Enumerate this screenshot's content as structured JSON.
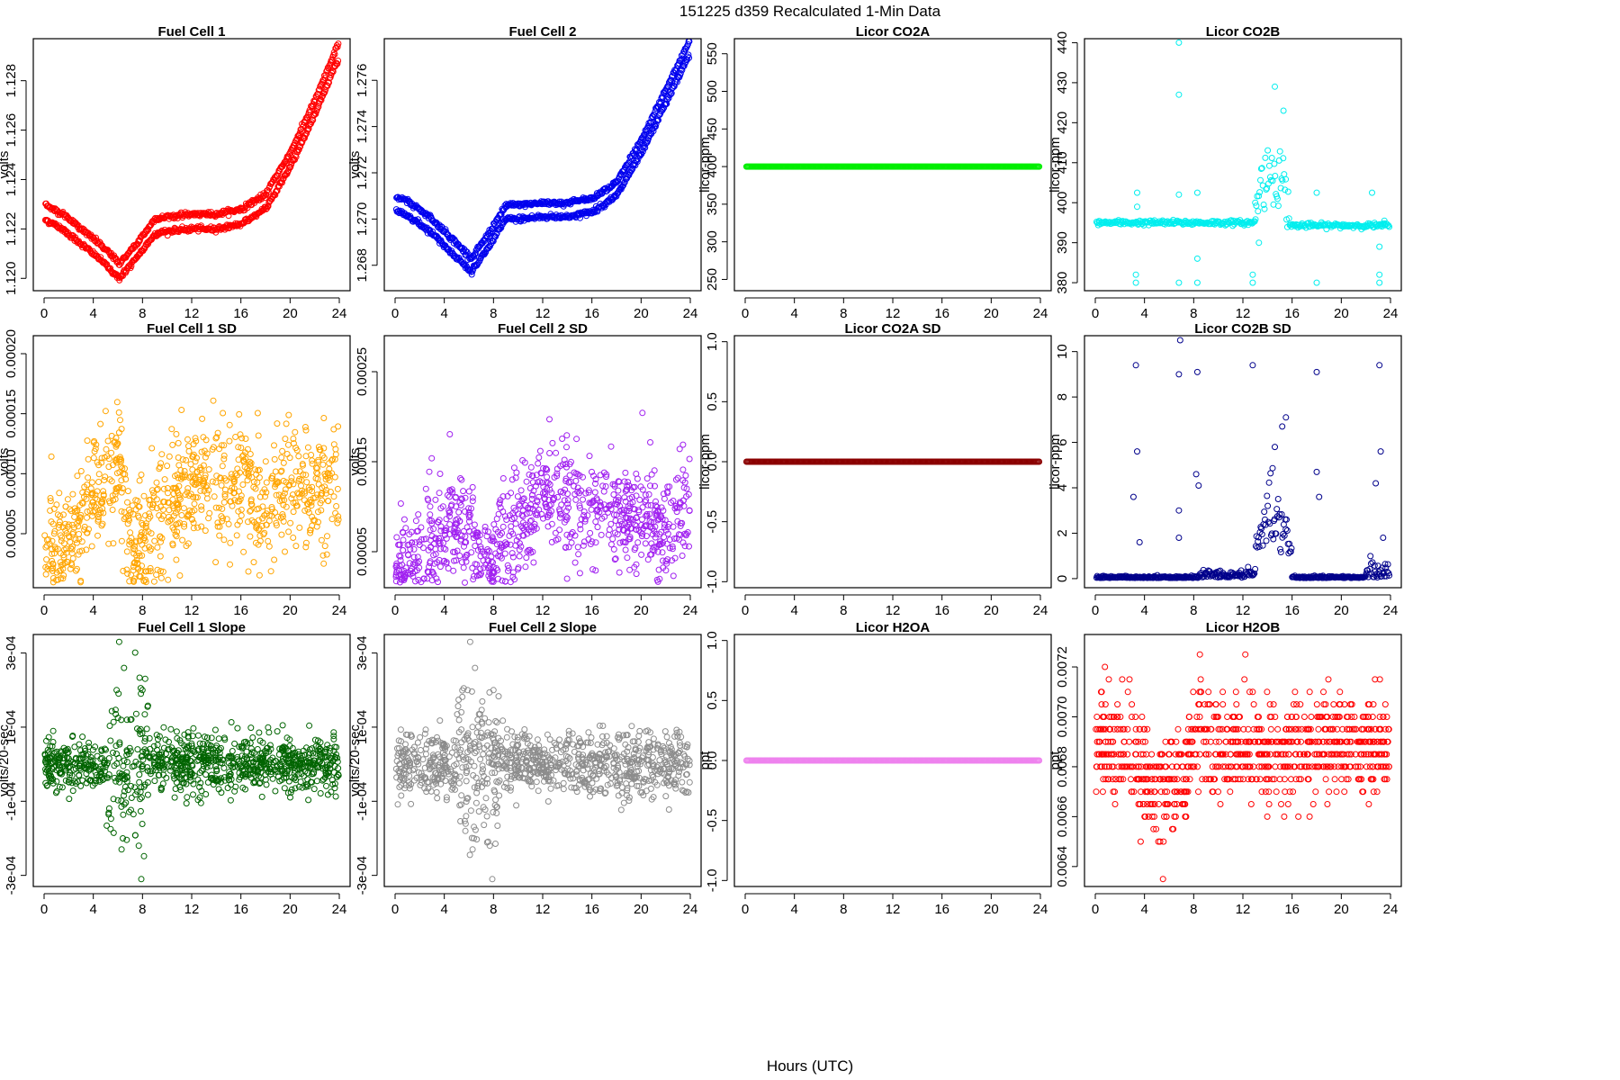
{
  "figure": {
    "title": "151225   d359   Recalculated 1-Min Data",
    "xlabel": "Hours (UTC)"
  },
  "chart_data": [
    {
      "id": "fc1",
      "type": "scatter",
      "title": "Fuel Cell 1",
      "ylabel": "volts",
      "color": "#ff0000",
      "xlim": [
        0,
        24
      ],
      "ylim": [
        1.1195,
        1.1297
      ],
      "xticks": [
        0,
        4,
        8,
        12,
        16,
        20,
        24
      ],
      "yticks": [
        1.12,
        1.122,
        1.124,
        1.126,
        1.128
      ],
      "ytick_labels": [
        "1.120",
        "1.122",
        "1.124",
        "1.126",
        "1.128"
      ],
      "kind": "trend2",
      "knots": [
        [
          0,
          1.1224
        ],
        [
          1.5,
          1.122
        ],
        [
          3,
          1.1214
        ],
        [
          4.5,
          1.1208
        ],
        [
          6.1,
          1.12
        ],
        [
          7.5,
          1.1208
        ],
        [
          9,
          1.1218
        ],
        [
          10,
          1.1219
        ],
        [
          12,
          1.122
        ],
        [
          14,
          1.122
        ],
        [
          16,
          1.1222
        ],
        [
          18,
          1.1228
        ],
        [
          20,
          1.1245
        ],
        [
          22,
          1.1266
        ],
        [
          24,
          1.129
        ]
      ],
      "offset": 0.0006,
      "noise": 8e-05,
      "n": 420
    },
    {
      "id": "fc2",
      "type": "scatter",
      "title": "Fuel Cell 2",
      "ylabel": "volts",
      "color": "#0000ee",
      "xlim": [
        0,
        24
      ],
      "ylim": [
        1.2669,
        1.2778
      ],
      "xticks": [
        0,
        4,
        8,
        12,
        16,
        20,
        24
      ],
      "yticks": [
        1.268,
        1.27,
        1.272,
        1.274,
        1.276
      ],
      "ytick_labels": [
        "1.268",
        "1.270",
        "1.272",
        "1.274",
        "1.276"
      ],
      "kind": "trend2",
      "knots": [
        [
          0,
          1.2704
        ],
        [
          1.5,
          1.27
        ],
        [
          3,
          1.2694
        ],
        [
          4.5,
          1.2686
        ],
        [
          6.2,
          1.2677
        ],
        [
          7.5,
          1.2687
        ],
        [
          9,
          1.27
        ],
        [
          10,
          1.27
        ],
        [
          12,
          1.2701
        ],
        [
          14,
          1.2701
        ],
        [
          16,
          1.2703
        ],
        [
          18,
          1.271
        ],
        [
          20,
          1.2728
        ],
        [
          22,
          1.275
        ],
        [
          24,
          1.2772
        ]
      ],
      "offset": 0.0006,
      "noise": 9e-05,
      "n": 420
    },
    {
      "id": "co2a",
      "type": "scatter",
      "title": "Licor CO2A",
      "ylabel": "licor-ppm",
      "color": "#00ee00",
      "xlim": [
        0,
        24
      ],
      "ylim": [
        235,
        570
      ],
      "xticks": [
        0,
        4,
        8,
        12,
        16,
        20,
        24
      ],
      "yticks": [
        250,
        300,
        350,
        400,
        450,
        500,
        550
      ],
      "ytick_labels": [
        "250",
        "300",
        "350",
        "400",
        "450",
        "500",
        "550"
      ],
      "kind": "flat",
      "value": 400,
      "n": 300
    },
    {
      "id": "co2b",
      "type": "scatter",
      "title": "Licor CO2B",
      "ylabel": "licor-ppm",
      "color": "#00eeee",
      "xlim": [
        0,
        24
      ],
      "ylim": [
        378,
        441
      ],
      "xticks": [
        0,
        4,
        8,
        12,
        16,
        20,
        24
      ],
      "yticks": [
        380,
        390,
        400,
        410,
        420,
        430,
        440
      ],
      "ytick_labels": [
        "380",
        "390",
        "400",
        "410",
        "420",
        "430",
        "440"
      ],
      "kind": "co2b",
      "n": 360
    },
    {
      "id": "fc1sd",
      "type": "scatter",
      "title": "Fuel Cell 1 SD",
      "ylabel": "volts",
      "color": "#ffa500",
      "xlim": [
        0,
        24
      ],
      "ylim": [
        5e-06,
        0.000215
      ],
      "xticks": [
        0,
        4,
        8,
        12,
        16,
        20,
        24
      ],
      "yticks": [
        5e-05,
        0.0001,
        0.00015,
        0.0002
      ],
      "ytick_labels": [
        "0.00005",
        "0.00010",
        "0.00015",
        "0.00020"
      ],
      "kind": "noisy",
      "knots": [
        [
          0,
          3e-05
        ],
        [
          2,
          4e-05
        ],
        [
          3.5,
          7e-05
        ],
        [
          5,
          0.0001
        ],
        [
          6,
          0.00011
        ],
        [
          7,
          3e-05
        ],
        [
          8,
          4e-05
        ],
        [
          10,
          7e-05
        ],
        [
          12,
          0.0001
        ],
        [
          14,
          8e-05
        ],
        [
          16,
          9e-05
        ],
        [
          18,
          7e-05
        ],
        [
          20,
          9e-05
        ],
        [
          22,
          8e-05
        ],
        [
          24,
          9e-05
        ]
      ],
      "spread": 2.5e-05,
      "n": 900
    },
    {
      "id": "fc2sd",
      "type": "scatter",
      "title": "Fuel Cell 2 SD",
      "ylabel": "volts",
      "color": "#a020f0",
      "xlim": [
        0,
        24
      ],
      "ylim": [
        1e-05,
        0.00029
      ],
      "xticks": [
        0,
        4,
        8,
        12,
        16,
        20,
        24
      ],
      "yticks": [
        5e-05,
        0.00015,
        0.00025
      ],
      "ytick_labels": [
        "0.00005",
        "0.00015",
        "0.00025"
      ],
      "kind": "noisy",
      "knots": [
        [
          0,
          3e-05
        ],
        [
          2,
          4e-05
        ],
        [
          4,
          7e-05
        ],
        [
          5.5,
          8e-05
        ],
        [
          7,
          4e-05
        ],
        [
          8,
          4e-05
        ],
        [
          10,
          8e-05
        ],
        [
          12,
          0.00012
        ],
        [
          14,
          0.0001
        ],
        [
          16,
          0.0001
        ],
        [
          18,
          9e-05
        ],
        [
          20,
          9e-05
        ],
        [
          22,
          8e-05
        ],
        [
          24,
          9e-05
        ]
      ],
      "spread": 3e-05,
      "n": 900
    },
    {
      "id": "co2asd",
      "type": "scatter",
      "title": "Licor CO2A SD",
      "ylabel": "licor-ppm",
      "color": "#8b0000",
      "xlim": [
        0,
        24
      ],
      "ylim": [
        -1.05,
        1.05
      ],
      "xticks": [
        0,
        4,
        8,
        12,
        16,
        20,
        24
      ],
      "yticks": [
        -1.0,
        -0.5,
        0.0,
        0.5,
        1.0
      ],
      "ytick_labels": [
        "-1.0",
        "-0.5",
        "0.0",
        "0.5",
        "1.0"
      ],
      "kind": "flat",
      "value": 0,
      "n": 300
    },
    {
      "id": "co2bsd",
      "type": "scatter",
      "title": "Licor CO2B SD",
      "ylabel": "licor-ppm",
      "color": "#00008b",
      "xlim": [
        0,
        24
      ],
      "ylim": [
        -0.4,
        10.7
      ],
      "xticks": [
        0,
        4,
        8,
        12,
        16,
        20,
        24
      ],
      "yticks": [
        0,
        2,
        4,
        6,
        8,
        10
      ],
      "ytick_labels": [
        "0",
        "2",
        "4",
        "6",
        "8",
        "10"
      ],
      "kind": "co2bsd",
      "n": 420
    },
    {
      "id": "fc1slope",
      "type": "scatter",
      "title": "Fuel Cell 1 Slope",
      "ylabel": "volts/20-sec",
      "color": "#006400",
      "xlim": [
        0,
        24
      ],
      "ylim": [
        -0.00033,
        0.00035
      ],
      "xticks": [
        0,
        4,
        8,
        12,
        16,
        20,
        24
      ],
      "yticks": [
        -0.0003,
        -0.0001,
        0.0001,
        0.0003
      ],
      "ytick_labels": [
        "-3e-04",
        "-1e-04",
        "1e-04",
        "3e-04"
      ],
      "kind": "slope",
      "spread": 3.8e-05,
      "n": 1000
    },
    {
      "id": "fc2slope",
      "type": "scatter",
      "title": "Fuel Cell 2 Slope",
      "ylabel": "volts/20-sec",
      "color": "#8c8c8c",
      "xlim": [
        0,
        24
      ],
      "ylim": [
        -0.00033,
        0.00035
      ],
      "xticks": [
        0,
        4,
        8,
        12,
        16,
        20,
        24
      ],
      "yticks": [
        -0.0003,
        -0.0001,
        0.0001,
        0.0003
      ],
      "ytick_labels": [
        "-3e-04",
        "-1e-04",
        "1e-04",
        "3e-04"
      ],
      "kind": "slope",
      "spread": 4.2e-05,
      "n": 1000
    },
    {
      "id": "h2oa",
      "type": "scatter",
      "title": "Licor H2OA",
      "ylabel": "ppt",
      "color": "#ee82ee",
      "xlim": [
        0,
        24
      ],
      "ylim": [
        -1.05,
        1.05
      ],
      "xticks": [
        0,
        4,
        8,
        12,
        16,
        20,
        24
      ],
      "yticks": [
        -1.0,
        -0.5,
        0.0,
        0.5,
        1.0
      ],
      "ytick_labels": [
        "-1.0",
        "-0.5",
        "0.0",
        "0.5",
        "1.0"
      ],
      "kind": "flat",
      "value": 0,
      "n": 300
    },
    {
      "id": "h2ob",
      "type": "scatter",
      "title": "Licor H2OB",
      "ylabel": "ppt",
      "color": "#ff0000",
      "xlim": [
        0,
        24
      ],
      "ylim": [
        0.00632,
        0.00733
      ],
      "xticks": [
        0,
        4,
        8,
        12,
        16,
        20,
        24
      ],
      "yticks": [
        0.0064,
        0.0066,
        0.0068,
        0.007,
        0.0072
      ],
      "ytick_labels": [
        "0.0064",
        "0.0066",
        "0.0068",
        "0.0070",
        "0.0072"
      ],
      "kind": "h2ob",
      "n": 900
    }
  ]
}
